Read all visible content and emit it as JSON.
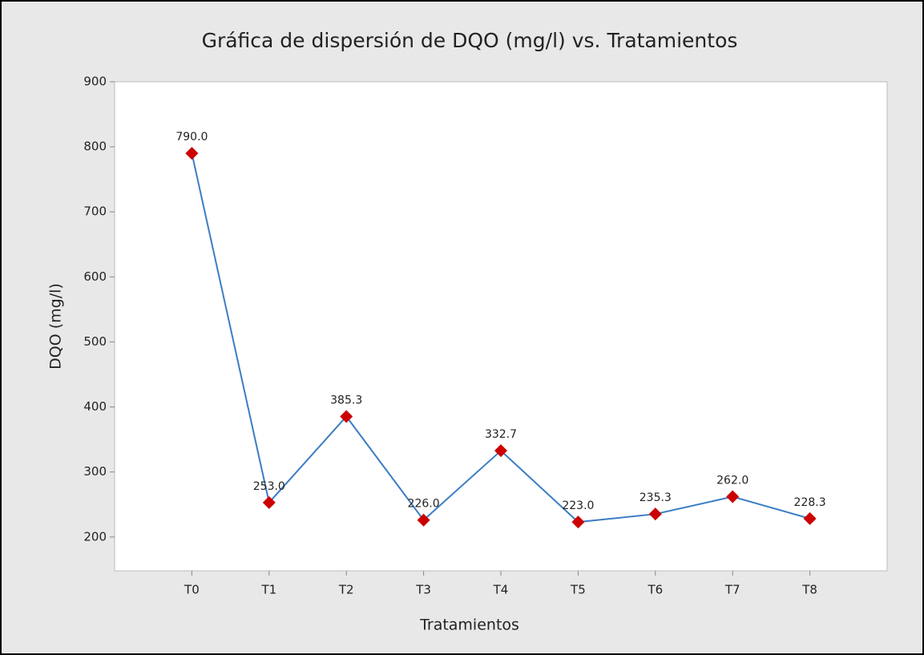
{
  "chart_data": {
    "type": "line",
    "title": "Gráfica de dispersión de DQO (mg/l) vs. Tratamientos",
    "x_label": "Tratamientos",
    "y_label": "DQO (mg/l)",
    "categories": [
      "T0",
      "T1",
      "T2",
      "T3",
      "T4",
      "T5",
      "T6",
      "T7",
      "T8"
    ],
    "series": [
      {
        "name": "DQO (mg/l)",
        "line_color": "#3b7dc4",
        "marker_color": "#cc0000",
        "values": [
          790,
          253,
          385.3,
          226,
          332.7,
          223,
          235.3,
          262,
          228.3
        ],
        "value_labels": [
          "790.0",
          "253.0",
          "385.3",
          "226.0",
          "332.7",
          "223.0",
          "235.3",
          "262.0",
          "228.3"
        ]
      }
    ],
    "ylim": [
      148,
      900
    ],
    "yticks": [
      200,
      300,
      400,
      500,
      600,
      700,
      800,
      900
    ],
    "grid": false
  }
}
